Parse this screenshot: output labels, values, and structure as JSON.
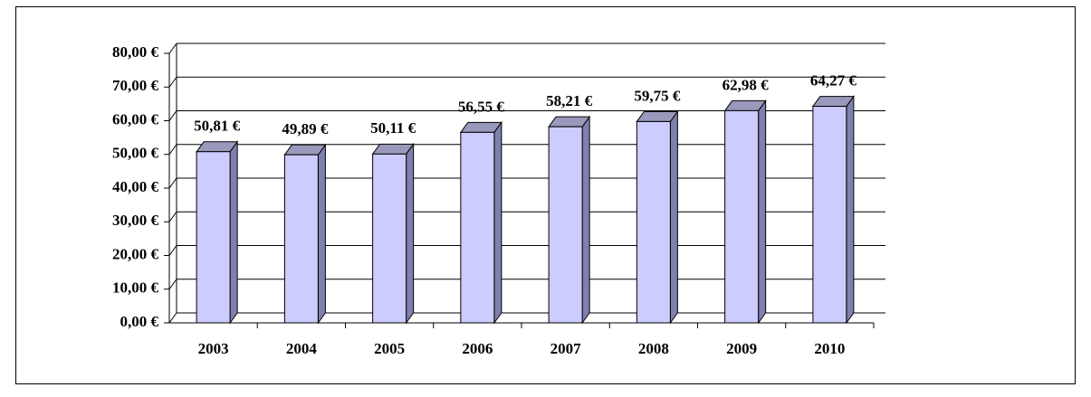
{
  "chart_data": {
    "type": "bar",
    "categories": [
      "2003",
      "2004",
      "2005",
      "2006",
      "2007",
      "2008",
      "2009",
      "2010"
    ],
    "values": [
      50.81,
      49.89,
      50.11,
      56.55,
      58.21,
      59.75,
      62.98,
      64.27
    ],
    "value_labels": [
      "50,81 €",
      "49,89 €",
      "50,11 €",
      "56,55 €",
      "58,21 €",
      "59,75 €",
      "62,98 €",
      "64,27 €"
    ],
    "color": "#ccccff",
    "ylim": [
      0,
      80
    ],
    "yticks": [
      {
        "value": 0,
        "label": "0,00 €"
      },
      {
        "value": 10,
        "label": "10,00 €"
      },
      {
        "value": 20,
        "label": "20,00 €"
      },
      {
        "value": 30,
        "label": "30,00 €"
      },
      {
        "value": 40,
        "label": "40,00 €"
      },
      {
        "value": 50,
        "label": "50,00 €"
      },
      {
        "value": 60,
        "label": "60,00 €"
      },
      {
        "value": 70,
        "label": "70,00 €"
      },
      {
        "value": 80,
        "label": "80,00 €"
      }
    ],
    "grid": true
  }
}
